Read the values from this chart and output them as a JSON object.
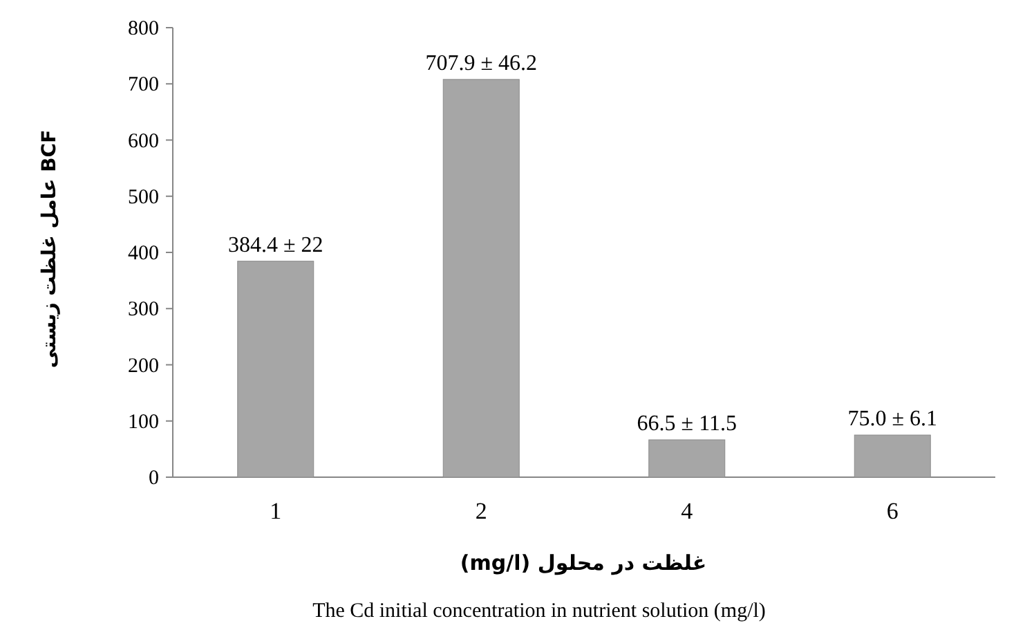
{
  "chart_data": {
    "type": "bar",
    "ylabel": "عامل غلظت زیستی BCF",
    "xlabel": "غلظت در محلول (mg/l)",
    "annotations": [
      "The Cd initial  concentration in nutrient solution (mg/l)"
    ],
    "categories": [
      "1",
      "2",
      "4",
      "6"
    ],
    "values": [
      384.4,
      707.9,
      66.5,
      75.0
    ],
    "value_labels": [
      "384.4 ± 22",
      "707.9 ± 46.2",
      "66.5 ± 11.5",
      "75.0 ± 6.1"
    ],
    "color": "#a6a6a6",
    "ylim": [
      0,
      800
    ],
    "yticks": [
      0,
      100,
      200,
      300,
      400,
      500,
      600,
      700,
      800
    ]
  }
}
